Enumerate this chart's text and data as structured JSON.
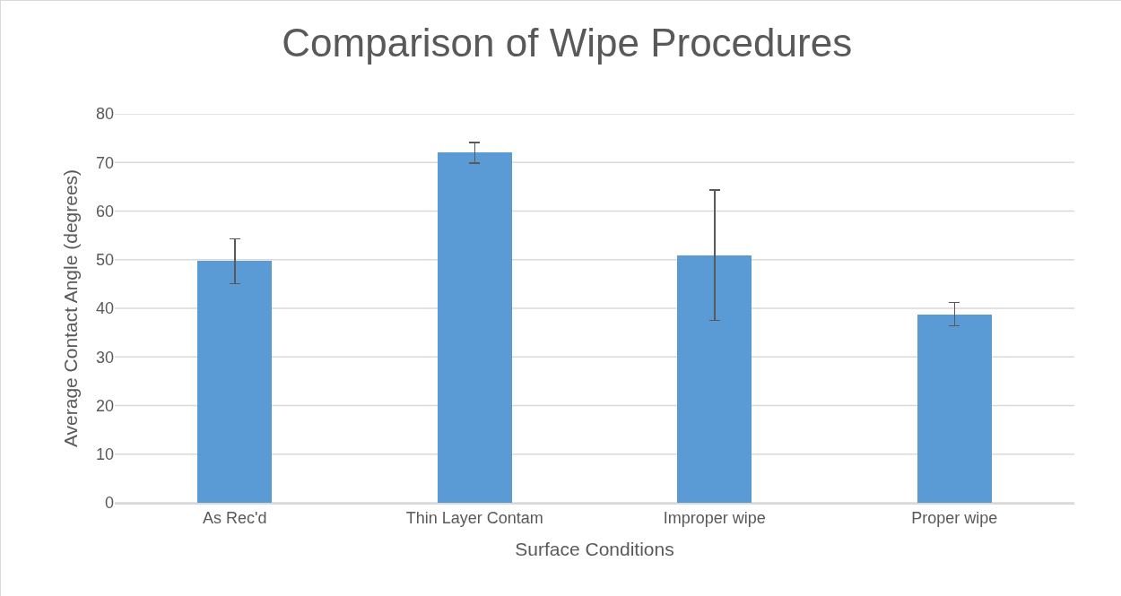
{
  "chart_data": {
    "type": "bar",
    "title": "Comparison of Wipe Procedures",
    "xlabel": "Surface Conditions",
    "ylabel": "Average Contact Angle (degrees)",
    "categories": [
      "As Rec'd",
      "Thin Layer Contam",
      "Improper wipe",
      "Proper wipe"
    ],
    "values": [
      49.7,
      72.0,
      50.9,
      38.8
    ],
    "errors": [
      4.6,
      2.1,
      13.4,
      2.4
    ],
    "color": "#5b9bd5",
    "ylim": [
      0,
      80
    ],
    "yticks": [
      0,
      10,
      20,
      30,
      40,
      50,
      60,
      70,
      80
    ],
    "grid": "y"
  }
}
